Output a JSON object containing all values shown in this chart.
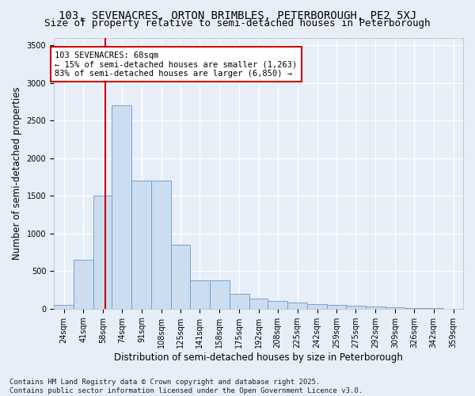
{
  "title_line1": "103, SEVENACRES, ORTON BRIMBLES, PETERBOROUGH, PE2 5XJ",
  "title_line2": "Size of property relative to semi-detached houses in Peterborough",
  "xlabel": "Distribution of semi-detached houses by size in Peterborough",
  "ylabel": "Number of semi-detached properties",
  "annotation_title": "103 SEVENACRES: 68sqm",
  "annotation_line2": "← 15% of semi-detached houses are smaller (1,263)",
  "annotation_line3": "83% of semi-detached houses are larger (6,850) →",
  "footer_line1": "Contains HM Land Registry data © Crown copyright and database right 2025.",
  "footer_line2": "Contains public sector information licensed under the Open Government Licence v3.0.",
  "bar_color": "#ccddf0",
  "bar_edge_color": "#6699cc",
  "red_line_x": 68,
  "categories": [
    "24sqm",
    "41sqm",
    "58sqm",
    "74sqm",
    "91sqm",
    "108sqm",
    "125sqm",
    "141sqm",
    "158sqm",
    "175sqm",
    "192sqm",
    "208sqm",
    "225sqm",
    "242sqm",
    "259sqm",
    "275sqm",
    "292sqm",
    "309sqm",
    "326sqm",
    "342sqm",
    "359sqm"
  ],
  "bin_edges": [
    24,
    41,
    58,
    74,
    91,
    108,
    125,
    141,
    158,
    175,
    192,
    208,
    225,
    242,
    259,
    275,
    292,
    309,
    326,
    342,
    359
  ],
  "values": [
    50,
    650,
    1500,
    2700,
    1700,
    1700,
    850,
    375,
    375,
    200,
    130,
    100,
    80,
    60,
    50,
    40,
    30,
    20,
    10,
    5,
    2
  ],
  "ylim": [
    0,
    3600
  ],
  "yticks": [
    0,
    500,
    1000,
    1500,
    2000,
    2500,
    3000,
    3500
  ],
  "background_color": "#e8eef8",
  "grid_color": "#ffffff",
  "box_color": "#cc0000",
  "title_fontsize": 10,
  "subtitle_fontsize": 9,
  "axis_label_fontsize": 8.5,
  "tick_fontsize": 7,
  "footer_fontsize": 6.5,
  "annotation_fontsize": 7.5
}
